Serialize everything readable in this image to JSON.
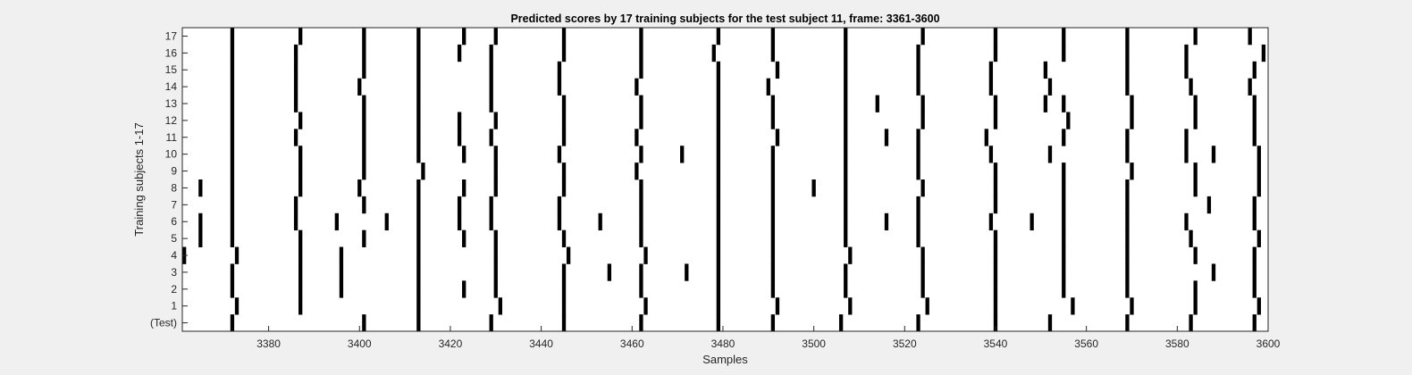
{
  "chart_data": {
    "type": "heatmap",
    "title": "Predicted scores by 17 training subjects for the test subject 11, frame: 3361-3600",
    "xlabel": "Samples",
    "ylabel": "Training subjects 1-17",
    "xlim": [
      3361,
      3600
    ],
    "xticks": [
      3380,
      3400,
      3420,
      3440,
      3460,
      3480,
      3500,
      3520,
      3540,
      3560,
      3580,
      3600
    ],
    "yticklabels": [
      "(Test)",
      "1",
      "2",
      "3",
      "4",
      "5",
      "6",
      "7",
      "8",
      "9",
      "10",
      "11",
      "12",
      "13",
      "14",
      "15",
      "16",
      "17"
    ],
    "grid": false,
    "legend": "none",
    "colors": {
      "background": "#ffffff",
      "mark": "#000000",
      "figure": "#f0f0f0"
    },
    "rows": [
      {
        "label": "(Test)",
        "x": [
          3372,
          3401,
          3413,
          3429,
          3445,
          3462,
          3479,
          3491,
          3506,
          3523,
          3540,
          3552,
          3569,
          3583,
          3597
        ]
      },
      {
        "label": "1",
        "x": [
          3373,
          3387,
          3413,
          3431,
          3445,
          3463,
          3479,
          3492,
          3508,
          3525,
          3540,
          3557,
          3570,
          3584,
          3598
        ]
      },
      {
        "label": "2",
        "x": [
          3372,
          3387,
          3396,
          3413,
          3423,
          3430,
          3445,
          3462,
          3479,
          3491,
          3507,
          3524,
          3540,
          3555,
          3569,
          3584,
          3597
        ]
      },
      {
        "label": "3",
        "x": [
          3372,
          3387,
          3396,
          3413,
          3430,
          3445,
          3455,
          3462,
          3472,
          3479,
          3491,
          3507,
          3524,
          3540,
          3555,
          3569,
          3588,
          3597
        ]
      },
      {
        "label": "4",
        "x": [
          3361,
          3373,
          3387,
          3396,
          3413,
          3430,
          3446,
          3463,
          3479,
          3491,
          3508,
          3524,
          3540,
          3555,
          3569,
          3584,
          3597
        ]
      },
      {
        "label": "5",
        "x": [
          3365,
          3372,
          3387,
          3401,
          3413,
          3423,
          3430,
          3445,
          3462,
          3479,
          3491,
          3507,
          3523,
          3540,
          3555,
          3569,
          3583,
          3598
        ]
      },
      {
        "label": "6",
        "x": [
          3365,
          3372,
          3386,
          3395,
          3406,
          3413,
          3422,
          3429,
          3444,
          3453,
          3462,
          3479,
          3491,
          3507,
          3516,
          3523,
          3539,
          3548,
          3555,
          3569,
          3582,
          3597
        ]
      },
      {
        "label": "7",
        "x": [
          3372,
          3386,
          3401,
          3413,
          3422,
          3429,
          3444,
          3462,
          3479,
          3491,
          3507,
          3523,
          3540,
          3555,
          3569,
          3587,
          3597
        ]
      },
      {
        "label": "8",
        "x": [
          3365,
          3372,
          3387,
          3400,
          3413,
          3423,
          3430,
          3445,
          3462,
          3479,
          3491,
          3500,
          3507,
          3524,
          3540,
          3555,
          3569,
          3584,
          3598
        ]
      },
      {
        "label": "9",
        "x": [
          3372,
          3387,
          3401,
          3414,
          3430,
          3445,
          3461,
          3479,
          3491,
          3507,
          3523,
          3540,
          3555,
          3570,
          3584,
          3598
        ]
      },
      {
        "label": "10",
        "x": [
          3372,
          3387,
          3401,
          3413,
          3423,
          3430,
          3444,
          3462,
          3471,
          3479,
          3491,
          3507,
          3523,
          3539,
          3552,
          3569,
          3582,
          3588,
          3598
        ]
      },
      {
        "label": "11",
        "x": [
          3372,
          3386,
          3401,
          3413,
          3422,
          3429,
          3445,
          3461,
          3479,
          3492,
          3507,
          3516,
          3523,
          3538,
          3555,
          3569,
          3582,
          3597
        ]
      },
      {
        "label": "12",
        "x": [
          3372,
          3387,
          3401,
          3413,
          3422,
          3430,
          3445,
          3462,
          3479,
          3491,
          3507,
          3524,
          3540,
          3556,
          3570,
          3584,
          3597
        ]
      },
      {
        "label": "13",
        "x": [
          3372,
          3386,
          3401,
          3413,
          3429,
          3445,
          3462,
          3479,
          3491,
          3507,
          3514,
          3524,
          3540,
          3551,
          3555,
          3570,
          3584,
          3597
        ]
      },
      {
        "label": "14",
        "x": [
          3372,
          3386,
          3400,
          3413,
          3429,
          3444,
          3461,
          3479,
          3490,
          3507,
          3523,
          3539,
          3552,
          3569,
          3583,
          3596
        ]
      },
      {
        "label": "15",
        "x": [
          3372,
          3386,
          3401,
          3413,
          3429,
          3444,
          3462,
          3479,
          3492,
          3507,
          3523,
          3539,
          3551,
          3569,
          3582,
          3597
        ]
      },
      {
        "label": "16",
        "x": [
          3372,
          3386,
          3401,
          3413,
          3422,
          3429,
          3445,
          3462,
          3478,
          3491,
          3507,
          3523,
          3540,
          3555,
          3569,
          3582,
          3599
        ]
      },
      {
        "label": "17",
        "x": [
          3372,
          3387,
          3401,
          3413,
          3423,
          3430,
          3445,
          3462,
          3479,
          3491,
          3507,
          3524,
          3540,
          3555,
          3569,
          3584,
          3596
        ]
      }
    ]
  }
}
